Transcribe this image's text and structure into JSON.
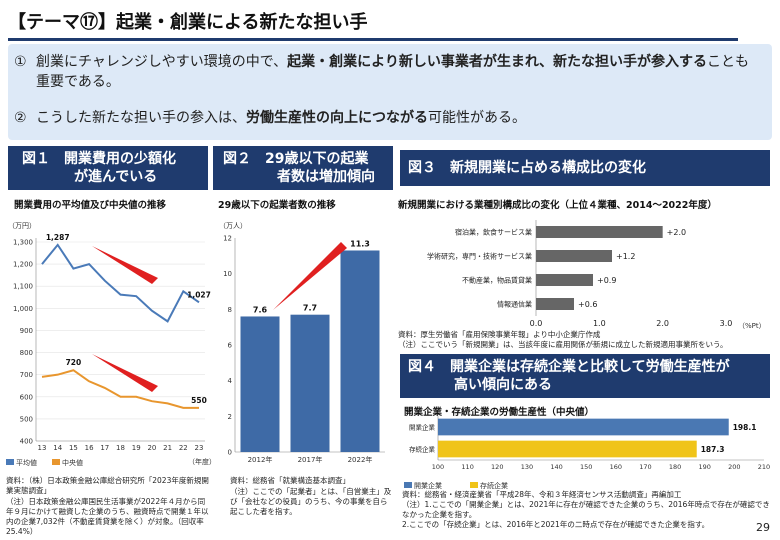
{
  "title": "【テーマ⑰】起業・創業による新たな担い手",
  "intro": {
    "p1_num": "①",
    "p1_a": "創業にチャレンジしやすい環境の中で、",
    "p1_b": "起業・創業により新しい事業者が生まれ、新たな担い手が参入する",
    "p1_c": "ことも重要である。",
    "p2_num": "②",
    "p2_a": "こうした新たな担い手の参入は、",
    "p2_b": "労働生産性の向上につながる",
    "p2_c": "可能性がある。"
  },
  "fig1": {
    "head1": "図１　開業費用の少額化",
    "head2": "が進んでいる",
    "subtitle": "開業費用の平均値及び中央値の推移",
    "unit": "（万円）",
    "xunit": "（年度）",
    "legend_avg": "平均値",
    "legend_med": "中央値",
    "note1": "資料：（株）日本政策金融公庫総合研究所「2023年度新規開業実態調査」",
    "note2": "（注）日本政策金融公庫国民生活事業が2022年４月から同年９月にかけて融資した企業のうち、融資時点で開業１年以内の企業7,032件（不動産賃貸業を除く）が対象。（回収率25.4%）"
  },
  "fig2": {
    "head1": "図２　29歳以下の起業",
    "head2": "者数は増加傾向",
    "subtitle": "29歳以下の起業者数の推移",
    "unit": "（万人）",
    "note1": "資料：総務省「就業構造基本調査」",
    "note2": "（注）ここでの「起業者」とは、「自営業主」及び「会社などの役員」のうち、今の事業を自ら起こした者を指す。"
  },
  "fig3": {
    "head": "図３　新規開業に占める構成比の変化",
    "subtitle": "新規開業における業種別構成比の変化（上位４業種、2014～2022年度）",
    "unit": "（%Pt）",
    "note1": "資料：厚生労働省「雇用保険事業年報」より中小企業庁作成",
    "note2": "（注）ここでいう「新規開業」は、当該年度に雇用関係が新規に成立した新規適用事業所をいう。"
  },
  "fig4": {
    "head1": "図４　開業企業は存続企業と比較して労働生産性が",
    "head2": "高い傾向にある",
    "subtitle": "開業企業・存続企業の労働生産性（中央値）",
    "legend_a": "開業企業",
    "legend_b": "存続企業",
    "note1": "資料：総務省・経済産業省「平成28年、令和３年経済センサス活動調査」再編加工",
    "note2": "（注）1.ここでの「開業企業」とは、2021年に存在が確認できた企業のうち、2016年時点で存在が確認できなかった企業を指す。",
    "note3": "2.ここでの「存続企業」とは、2016年と2021年の二時点で存在が確認できた企業を指す。"
  },
  "page_number": "29",
  "chart_data": [
    {
      "type": "line",
      "x": [
        "13",
        "14",
        "15",
        "16",
        "17",
        "18",
        "19",
        "20",
        "21",
        "22",
        "23"
      ],
      "series": [
        {
          "name": "平均値",
          "values": [
            1200,
            1287,
            1180,
            1200,
            1125,
            1062,
            1055,
            989,
            941,
            1077,
            1027
          ],
          "color": "#4a7ab8"
        },
        {
          "name": "中央値",
          "values": [
            690,
            700,
            720,
            670,
            640,
            600,
            600,
            580,
            570,
            550,
            550
          ],
          "color": "#e8962e"
        }
      ],
      "ylim": [
        400,
        1300
      ],
      "yticks": [
        400,
        500,
        600,
        700,
        800,
        900,
        1000,
        1100,
        1200,
        1300
      ],
      "ytick_labels": [
        "400",
        "500",
        "600",
        "700",
        "800",
        "900",
        "1,000",
        "1,100",
        "1,200",
        "1,300"
      ],
      "data_labels": [
        {
          "series": 0,
          "index": 1,
          "text": "1,287"
        },
        {
          "series": 0,
          "index": 10,
          "text": "1,027"
        },
        {
          "series": 1,
          "index": 2,
          "text": "720"
        },
        {
          "series": 1,
          "index": 10,
          "text": "550"
        }
      ]
    },
    {
      "type": "bar",
      "categories": [
        "2012年",
        "2017年",
        "2022年"
      ],
      "values": [
        7.6,
        7.7,
        11.3
      ],
      "value_labels": [
        "7.6",
        "7.7",
        "11.3"
      ],
      "ylim": [
        0,
        12
      ],
      "yticks": [
        0,
        2,
        4,
        6,
        8,
        10,
        12
      ],
      "color": "#3e6aa6"
    },
    {
      "type": "bar",
      "orientation": "horizontal",
      "categories": [
        "宿泊業，飲食サービス業",
        "学術研究，専門・技術サービス業",
        "不動産業，物品賃貸業",
        "情報通信業"
      ],
      "values": [
        2.0,
        1.2,
        0.9,
        0.6
      ],
      "value_labels": [
        "+2.0",
        "+1.2",
        "+0.9",
        "+0.6"
      ],
      "xlim": [
        0,
        3
      ],
      "xticks": [
        0,
        1,
        2,
        3
      ],
      "xtick_labels": [
        "0.0",
        "1.0",
        "2.0",
        "3.0"
      ],
      "color": "#666666"
    },
    {
      "type": "bar",
      "orientation": "horizontal",
      "categories": [
        "開業企業",
        "存続企業"
      ],
      "values": [
        198.1,
        187.3
      ],
      "value_labels": [
        "198.1",
        "187.3"
      ],
      "xlim": [
        100,
        210
      ],
      "xticks": [
        100,
        110,
        120,
        130,
        140,
        150,
        160,
        170,
        180,
        190,
        200,
        210
      ],
      "colors": [
        "#4a78b3",
        "#f0c419"
      ]
    }
  ]
}
